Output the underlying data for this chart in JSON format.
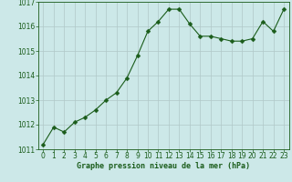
{
  "x": [
    0,
    1,
    2,
    3,
    4,
    5,
    6,
    7,
    8,
    9,
    10,
    11,
    12,
    13,
    14,
    15,
    16,
    17,
    18,
    19,
    20,
    21,
    22,
    23
  ],
  "y": [
    1011.2,
    1011.9,
    1011.7,
    1012.1,
    1012.3,
    1012.6,
    1013.0,
    1013.3,
    1013.9,
    1014.8,
    1015.8,
    1016.2,
    1016.7,
    1016.7,
    1016.1,
    1015.6,
    1015.6,
    1015.5,
    1015.4,
    1015.4,
    1015.5,
    1016.2,
    1015.8,
    1016.7
  ],
  "line_color": "#1a5c1a",
  "marker": "D",
  "marker_size": 2.5,
  "bg_color": "#cce8e8",
  "grid_color": "#b0c8c8",
  "xlabel": "Graphe pression niveau de la mer (hPa)",
  "xlabel_color": "#1a5c1a",
  "xlabel_fontsize": 6.0,
  "tick_color": "#1a5c1a",
  "tick_fontsize": 5.5,
  "ylim": [
    1011.0,
    1017.0
  ],
  "yticks": [
    1011,
    1012,
    1013,
    1014,
    1015,
    1016,
    1017
  ],
  "xlim": [
    -0.5,
    23.5
  ],
  "xticks": [
    0,
    1,
    2,
    3,
    4,
    5,
    6,
    7,
    8,
    9,
    10,
    11,
    12,
    13,
    14,
    15,
    16,
    17,
    18,
    19,
    20,
    21,
    22,
    23
  ]
}
